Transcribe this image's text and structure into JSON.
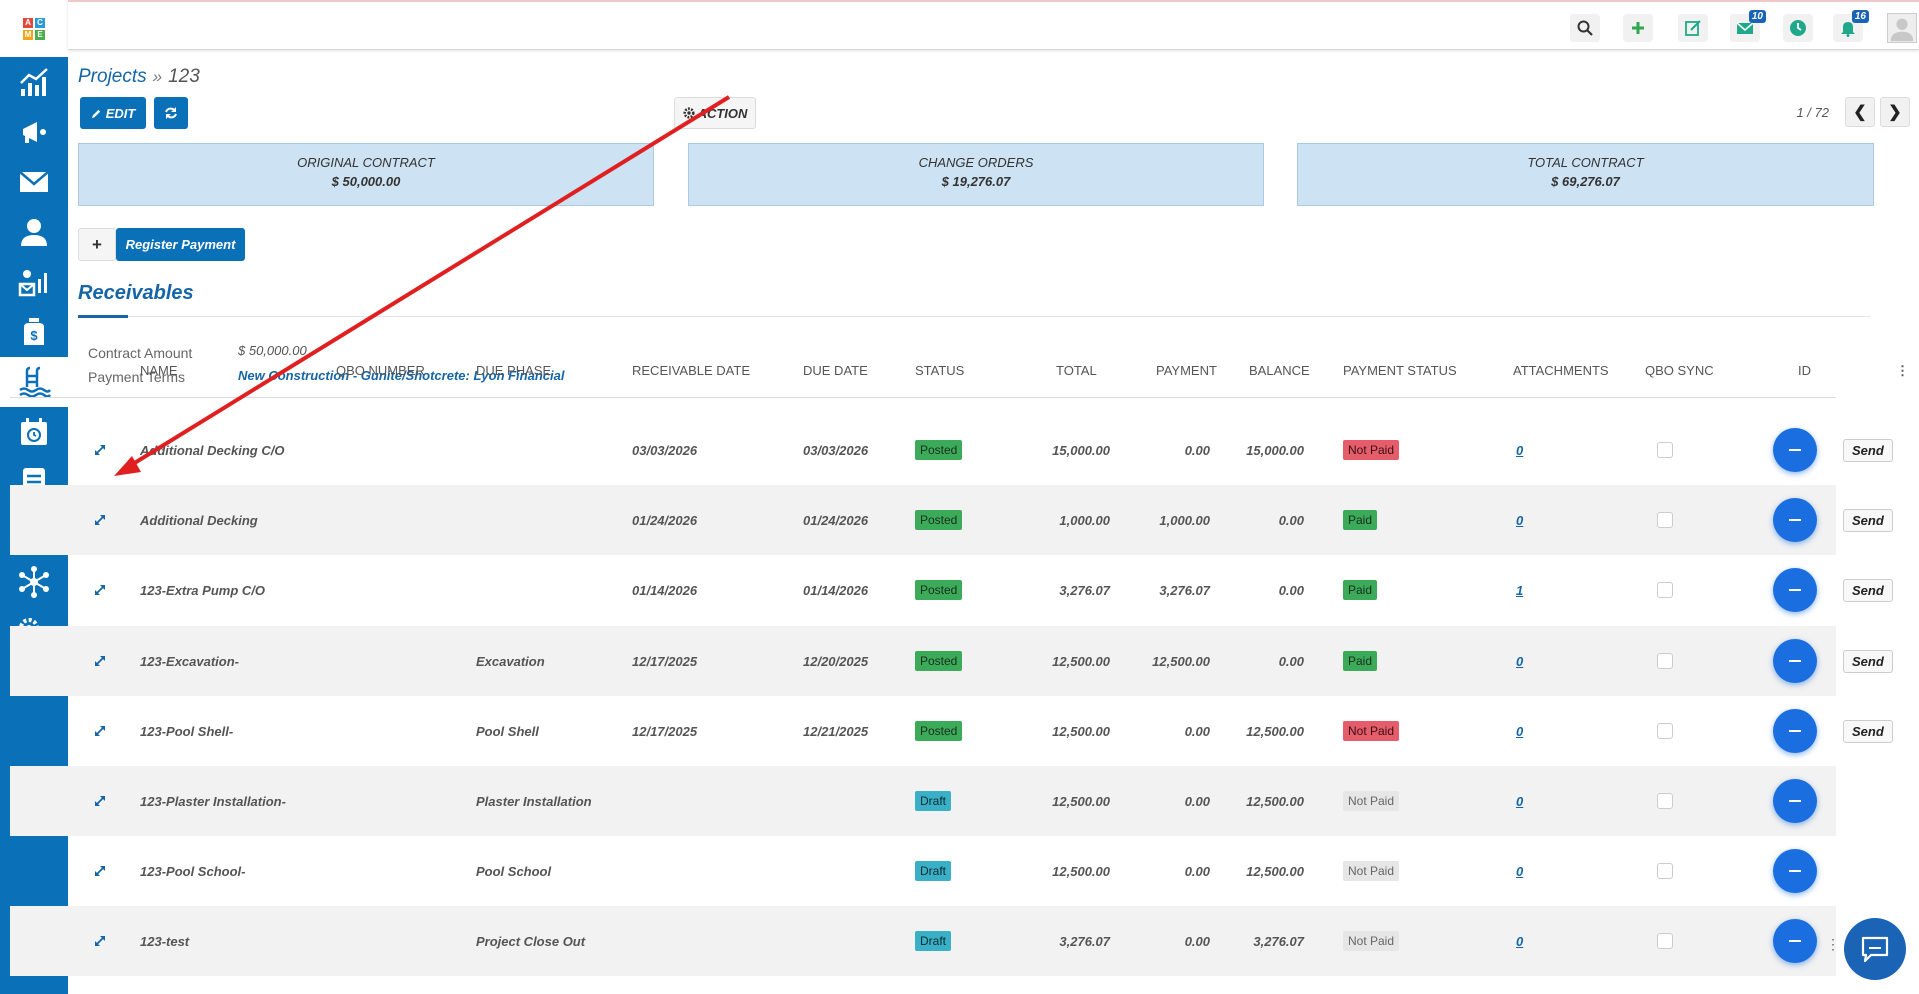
{
  "app": {
    "logo_letters": [
      "A",
      "C",
      "M",
      "E"
    ],
    "colors": {
      "primary": "#0a70b8",
      "link": "#1565a8",
      "posted": "#3cab59",
      "draft": "#3ab0c7",
      "not_paid": "#e55c6a",
      "annotation_arrow": "#e02020"
    }
  },
  "sidebar": {
    "items": [
      {
        "icon": "chart-icon"
      },
      {
        "icon": "megaphone-icon"
      },
      {
        "icon": "mail-icon"
      },
      {
        "icon": "user-icon"
      },
      {
        "icon": "marketing-icon"
      },
      {
        "icon": "money-bag-icon"
      },
      {
        "icon": "pool-icon",
        "active": true
      },
      {
        "icon": "calendar-icon"
      },
      {
        "icon": "document-icon"
      },
      {
        "icon": "wallet-icon"
      },
      {
        "icon": "network-icon"
      },
      {
        "icon": "settings-icon"
      },
      {
        "icon": "support-icon"
      }
    ]
  },
  "topbar": {
    "buttons": [
      {
        "icon": "search-icon"
      },
      {
        "icon": "plus-icon"
      },
      {
        "icon": "edit-note-icon"
      },
      {
        "icon": "mail-icon",
        "badge": "10"
      },
      {
        "icon": "clock-icon"
      },
      {
        "icon": "bell-icon",
        "badge": "16"
      }
    ]
  },
  "breadcrumb": {
    "parent": "Projects",
    "separator": "»",
    "current": "123"
  },
  "toolbar": {
    "edit_label": "EDIT",
    "action_label": "ACTION"
  },
  "pager": {
    "text": "1 / 72"
  },
  "summary": [
    {
      "label": "ORIGINAL CONTRACT",
      "value": "$ 50,000.00"
    },
    {
      "label": "CHANGE ORDERS",
      "value": "$ 19,276.07"
    },
    {
      "label": "TOTAL CONTRACT",
      "value": "$ 69,276.07"
    }
  ],
  "payment": {
    "add_label": "+",
    "register_label": "Register Payment"
  },
  "receivables": {
    "title": "Receivables",
    "contract_amount_label": "Contract Amount",
    "contract_amount_value": "$ 50,000.00",
    "payment_terms_label": "Payment Terms",
    "payment_terms_value": "New Construction - Gunite/Shotcrete: Lyon Financial"
  },
  "table": {
    "headers": {
      "name": "NAME",
      "qbo": "QBO NUMBER",
      "phase": "DUE PHASE",
      "recv": "RECEIVABLE DATE",
      "due": "DUE DATE",
      "status": "STATUS",
      "total": "TOTAL",
      "payment": "PAYMENT",
      "balance": "BALANCE",
      "pay_status": "PAYMENT STATUS",
      "attach": "ATTACHMENTS",
      "qbo_sync": "QBO SYNC",
      "id": "ID"
    },
    "send_label": "Send",
    "rows": [
      {
        "name": "Additional Decking C/O",
        "phase": "",
        "recv": "03/03/2026",
        "due": "03/03/2026",
        "status": "Posted",
        "total": "15,000.00",
        "payment": "0.00",
        "balance": "15,000.00",
        "pay_status": "Not Paid",
        "attach": "0",
        "send": true
      },
      {
        "name": "Additional Decking",
        "phase": "",
        "recv": "01/24/2026",
        "due": "01/24/2026",
        "status": "Posted",
        "total": "1,000.00",
        "payment": "1,000.00",
        "balance": "0.00",
        "pay_status": "Paid",
        "attach": "0",
        "send": true
      },
      {
        "name": "123-Extra Pump C/O",
        "phase": "",
        "recv": "01/14/2026",
        "due": "01/14/2026",
        "status": "Posted",
        "total": "3,276.07",
        "payment": "3,276.07",
        "balance": "0.00",
        "pay_status": "Paid",
        "attach": "1",
        "send": true
      },
      {
        "name": "123-Excavation-",
        "phase": "Excavation",
        "recv": "12/17/2025",
        "due": "12/20/2025",
        "status": "Posted",
        "total": "12,500.00",
        "payment": "12,500.00",
        "balance": "0.00",
        "pay_status": "Paid",
        "attach": "0",
        "send": true
      },
      {
        "name": "123-Pool Shell-",
        "phase": "Pool Shell",
        "recv": "12/17/2025",
        "due": "12/21/2025",
        "status": "Posted",
        "total": "12,500.00",
        "payment": "0.00",
        "balance": "12,500.00",
        "pay_status": "Not Paid",
        "attach": "0",
        "send": true
      },
      {
        "name": "123-Plaster Installation-",
        "phase": "Plaster Installation",
        "recv": "",
        "due": "",
        "status": "Draft",
        "total": "12,500.00",
        "payment": "0.00",
        "balance": "12,500.00",
        "pay_status": "Not Paid",
        "attach": "0",
        "send": false
      },
      {
        "name": "123-Pool School-",
        "phase": "Pool School",
        "recv": "",
        "due": "",
        "status": "Draft",
        "total": "12,500.00",
        "payment": "0.00",
        "balance": "12,500.00",
        "pay_status": "Not Paid",
        "attach": "0",
        "send": false
      },
      {
        "name": "123-test",
        "phase": "Project Close Out",
        "recv": "",
        "due": "",
        "status": "Draft",
        "total": "3,276.07",
        "payment": "0.00",
        "balance": "3,276.07",
        "pay_status": "Not Paid",
        "attach": "0",
        "send": false
      }
    ]
  }
}
